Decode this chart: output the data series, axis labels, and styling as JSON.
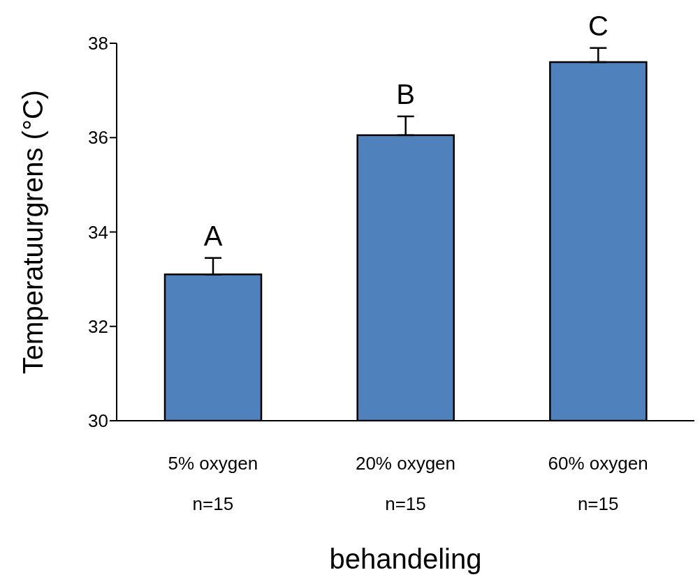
{
  "chart_data": {
    "type": "bar",
    "categories": [
      "5% oxygen\nn=15",
      "20% oxygen\nn=15",
      "60% oxygen\nn=15"
    ],
    "values": [
      33.1,
      36.05,
      37.6
    ],
    "errors": [
      [
        33.1,
        33.45
      ],
      [
        36.05,
        36.45
      ],
      [
        37.6,
        37.9
      ]
    ],
    "color": "#4f81bd",
    "xlabel": "behandeling",
    "ylabel": "Temperatuurgrens (°C)",
    "ylim": [
      30,
      38
    ],
    "yticks": [
      30,
      32,
      34,
      36,
      38
    ],
    "grid": false,
    "legend": false,
    "annotations": [
      "A",
      "B",
      "C"
    ]
  }
}
